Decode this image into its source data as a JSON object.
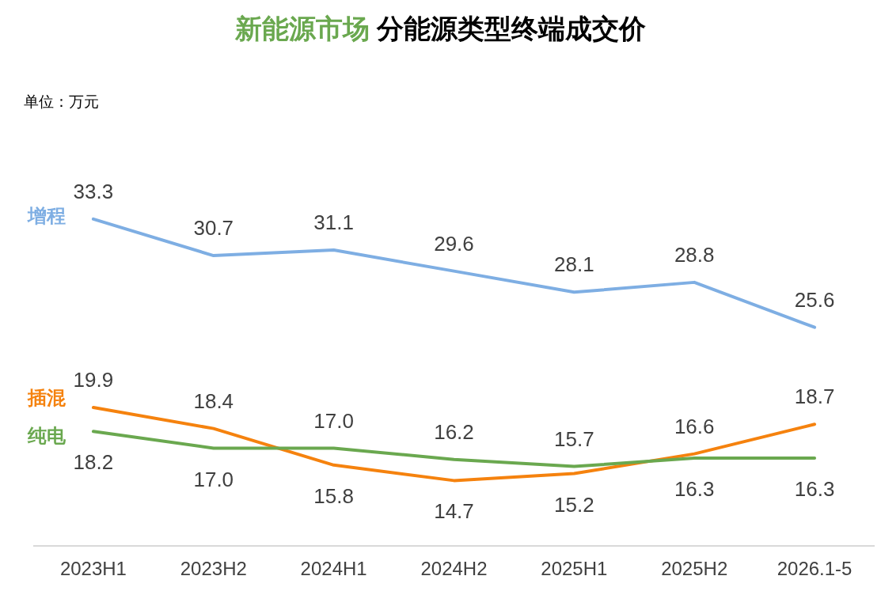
{
  "chart_data": {
    "type": "line",
    "title": "新能源市场 分能源类型终端成交价",
    "annotations": [
      "单位：万元"
    ],
    "categories": [
      "2023H1",
      "2023H2",
      "2024H1",
      "2024H2",
      "2025H1",
      "2025H2",
      "2026.1-5"
    ],
    "series": [
      {
        "name": "增程",
        "color": "#7eaee3",
        "values": [
          33.3,
          30.7,
          31.1,
          29.6,
          28.1,
          28.8,
          25.6
        ],
        "value_labels": [
          "33.3",
          "30.7",
          "31.1",
          "29.6",
          "28.1",
          "28.8",
          "25.6"
        ]
      },
      {
        "name": "插混",
        "color": "#f5820e",
        "values": [
          19.9,
          18.4,
          15.8,
          14.7,
          15.2,
          16.6,
          18.7
        ],
        "value_labels": [
          "19.9",
          "18.4",
          "15.8",
          "14.7",
          "15.2",
          "16.6",
          "18.7"
        ]
      },
      {
        "name": "纯电",
        "color": "#6aa84f",
        "values": [
          18.2,
          17.0,
          17.0,
          16.2,
          15.7,
          16.3,
          16.3
        ],
        "value_labels": [
          "18.2",
          "17.0",
          "17.0",
          "16.2",
          "15.7",
          "16.3",
          "16.3"
        ]
      }
    ],
    "tick_labels": "x",
    "marker": "none",
    "line_style": "solid",
    "legend": false
  }
}
